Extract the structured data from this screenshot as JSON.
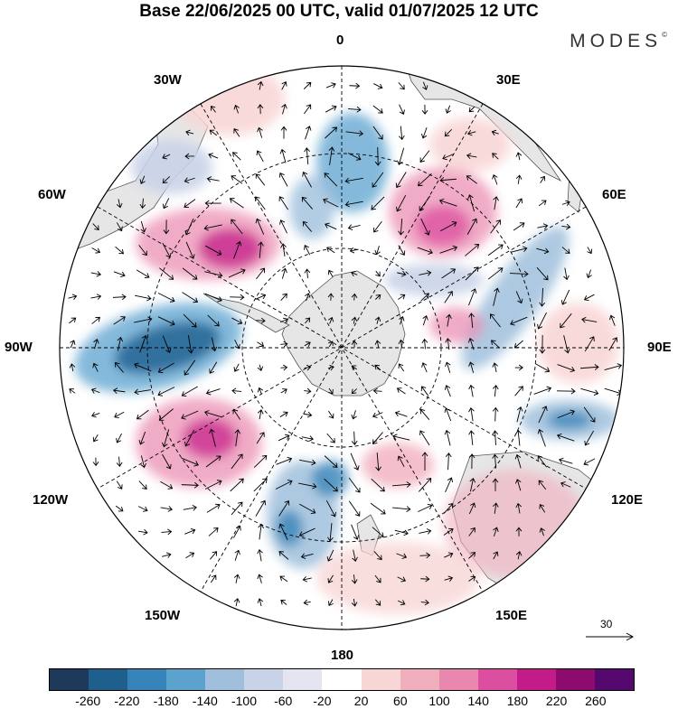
{
  "title": "Base 22/06/2025 00 UTC, valid 01/07/2025 12 UTC",
  "brand": "MODES",
  "brand_mark": "©",
  "longitude_labels": [
    "0",
    "30E",
    "60E",
    "90E",
    "120E",
    "150E",
    "180",
    "150W",
    "120W",
    "90W",
    "60W",
    "30W"
  ],
  "reference_vector": {
    "value": "30"
  },
  "legend": {
    "ticks": [
      "-260",
      "-220",
      "-180",
      "-140",
      "-100",
      "-60",
      "-20",
      "20",
      "60",
      "100",
      "140",
      "180",
      "220",
      "260"
    ],
    "colors": [
      "#1d3a5a",
      "#1f5f8e",
      "#3583b8",
      "#5ba2cf",
      "#9fbfdc",
      "#c9d3e8",
      "#e5e5f1",
      "#ffffff",
      "#f8d6d6",
      "#f1aebd",
      "#ea87ae",
      "#dc4ea0",
      "#c31c88",
      "#8d0a6f",
      "#55086d"
    ]
  },
  "colors": {
    "land": "#e6e6e6",
    "coast": "#555555",
    "arrow": "#000000",
    "grid": "#000000"
  }
}
